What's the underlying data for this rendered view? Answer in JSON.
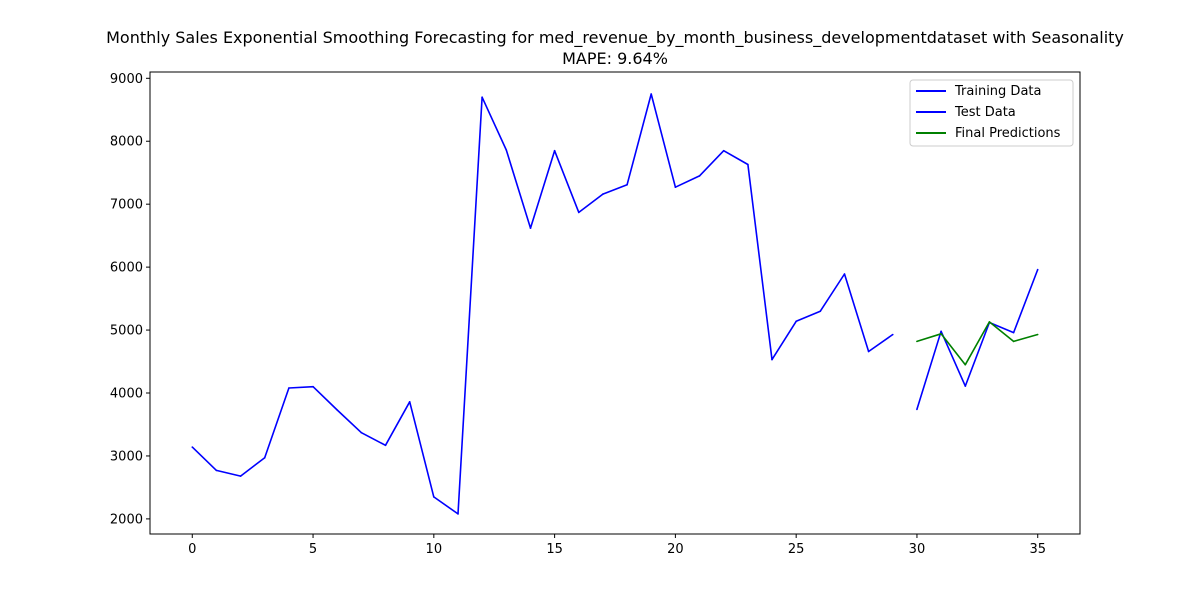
{
  "chart_data": {
    "type": "line",
    "title": "Monthly Sales Exponential Smoothing Forecasting for med_revenue_by_month_business_developmentdataset with Seasonality",
    "subtitle": "MAPE: 9.64%",
    "xlabel": "",
    "ylabel": "",
    "xlim": [
      -1.75,
      36.75
    ],
    "ylim": [
      1760,
      9100
    ],
    "x_ticks": [
      0,
      5,
      10,
      15,
      20,
      25,
      30,
      35
    ],
    "y_ticks": [
      2000,
      3000,
      4000,
      5000,
      6000,
      7000,
      8000,
      9000
    ],
    "grid": false,
    "legend_position": "top-right",
    "series": [
      {
        "name": "Training Data",
        "color": "#0000ff",
        "x": [
          0,
          1,
          2,
          3,
          4,
          5,
          6,
          7,
          8,
          9,
          10,
          11,
          12,
          13,
          14,
          15,
          16,
          17,
          18,
          19,
          20,
          21,
          22,
          23,
          24,
          25,
          26,
          27,
          28,
          29
        ],
        "values": [
          3140,
          2770,
          2680,
          2970,
          4080,
          4100,
          3730,
          3370,
          3170,
          3860,
          2350,
          2080,
          8700,
          7860,
          6620,
          7850,
          6870,
          7160,
          7310,
          8750,
          7270,
          7450,
          7850,
          7630,
          4530,
          5140,
          5300,
          5890,
          4660,
          4930
        ]
      },
      {
        "name": "Test Data",
        "color": "#0000ff",
        "x": [
          30,
          31,
          32,
          33,
          34,
          35
        ],
        "values": [
          3740,
          4980,
          4110,
          5120,
          4960,
          5960
        ]
      },
      {
        "name": "Final Predictions",
        "color": "#008000",
        "x": [
          30,
          31,
          32,
          33,
          34,
          35
        ],
        "values": [
          4820,
          4940,
          4450,
          5130,
          4820,
          4930
        ]
      }
    ]
  }
}
